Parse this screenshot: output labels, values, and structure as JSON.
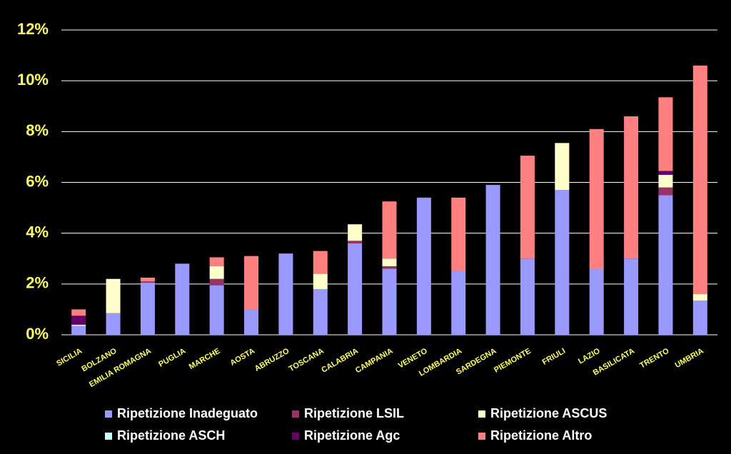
{
  "chart_data": {
    "type": "stacked_bar",
    "categories": [
      "SICILIA",
      "BOLZANO",
      "EMILIA ROMAGNA",
      "PUGLIA",
      "MARCHE",
      "AOSTA",
      "ABRUZZO",
      "TOSCANA",
      "CALABRIA",
      "CAMPANIA",
      "VENETO",
      "LOMBARDIA",
      "SARDEGNA",
      "PIEMONTE",
      "FRIULI",
      "LAZIO",
      "BASILICATA",
      "TRENTO",
      "UMBRIA"
    ],
    "series": [
      {
        "name": "Ripetizione Inadeguato",
        "color": "#9999ff",
        "values": [
          0.35,
          0.85,
          2.05,
          2.8,
          1.95,
          1.0,
          3.2,
          1.8,
          3.6,
          2.6,
          5.4,
          2.5,
          5.9,
          3.0,
          5.7,
          2.6,
          3.0,
          5.5,
          1.35
        ]
      },
      {
        "name": "Ripetizione LSIL",
        "color": "#993366",
        "values": [
          0,
          0,
          0.05,
          0,
          0.25,
          0,
          0,
          0,
          0.1,
          0.1,
          0,
          0,
          0,
          0,
          0,
          0,
          0,
          0.3,
          0
        ]
      },
      {
        "name": "Ripetizione ASCUS",
        "color": "#ffffcc",
        "values": [
          0,
          1.35,
          0,
          0,
          0.5,
          0,
          0,
          0.6,
          0.65,
          0.3,
          0,
          0,
          0,
          0,
          1.85,
          0,
          0,
          0.5,
          0.25
        ]
      },
      {
        "name": "Ripetizione ASCH",
        "color": "#ccffff",
        "values": [
          0.05,
          0,
          0,
          0,
          0,
          0,
          0,
          0,
          0,
          0,
          0,
          0,
          0,
          0,
          0,
          0,
          0,
          0,
          0
        ]
      },
      {
        "name": "Ripetizione Agc",
        "color": "#660066",
        "values": [
          0.35,
          0,
          0,
          0,
          0,
          0,
          0,
          0,
          0,
          0,
          0,
          0,
          0,
          0,
          0,
          0,
          0,
          0.15,
          0
        ]
      },
      {
        "name": "Ripetizione Altro",
        "color": "#ff8080",
        "values": [
          0.25,
          0,
          0.15,
          0,
          0.35,
          2.1,
          0,
          0.9,
          0,
          2.25,
          0,
          2.9,
          0,
          4.05,
          0,
          5.5,
          5.6,
          2.9,
          9.0
        ]
      }
    ],
    "ylim": [
      0,
      12
    ],
    "yticks": [
      {
        "value": 0,
        "label": "0%"
      },
      {
        "value": 2,
        "label": "2%"
      },
      {
        "value": 4,
        "label": "4%"
      },
      {
        "value": 6,
        "label": "6%"
      },
      {
        "value": 8,
        "label": "8%"
      },
      {
        "value": 10,
        "label": "10%"
      },
      {
        "value": 12,
        "label": "12%"
      }
    ],
    "grid": true
  }
}
